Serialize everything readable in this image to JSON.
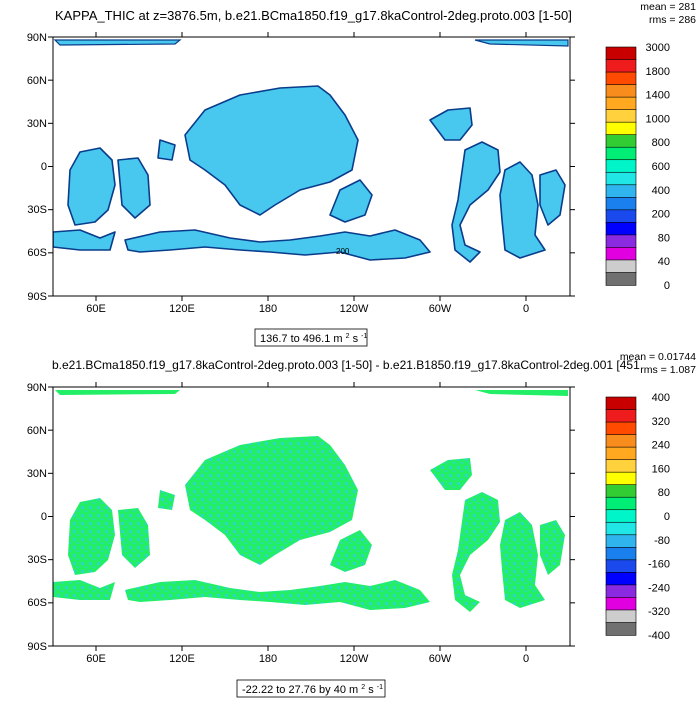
{
  "chart_data": [
    {
      "type": "heatmap",
      "title": "KAPPA_THIC at z=3876.5m, b.e21.BCma1850.f19_g17.8kaControl-2deg.proto.003 [1-50]",
      "stats": [
        "mean = 281",
        "rms = 286"
      ],
      "range_text": "136.7 to 496.1 m",
      "range_unit_sup": "2",
      "range_unit_tail": " s",
      "range_unit_sup2": "-1",
      "x_ticks": [
        "60E",
        "120E",
        "180",
        "120W",
        "60W",
        "0"
      ],
      "y_ticks": [
        "90N",
        "60N",
        "30N",
        "0",
        "30S",
        "60S",
        "90S"
      ],
      "contour_label": "200",
      "ocean_fill": "#48c8ee",
      "colorbar": {
        "labels": [
          "3000",
          "1800",
          "1400",
          "1000",
          "800",
          "600",
          "400",
          "200",
          "80",
          "40",
          "0"
        ],
        "colors": [
          "#c80000",
          "#ee1c1c",
          "#ff4a00",
          "#f88c1c",
          "#ffa820",
          "#ffd13c",
          "#ffff00",
          "#32cd32",
          "#00ee76",
          "#00f5c8",
          "#20e6e6",
          "#2fb4ee",
          "#1a80ee",
          "#1a4aee",
          "#0000ff",
          "#8a2be2",
          "#e000e0",
          "#cdcdcd",
          "#707070"
        ]
      }
    },
    {
      "type": "heatmap",
      "title": "b.e21.BCma1850.f19_g17.8kaControl-2deg.proto.003 [1-50] - b.e21.B1850.f19_g17.8kaControl-2deg.001 [451",
      "stats": [
        "mean = 0.01744",
        "rms = 1.087"
      ],
      "range_text": "-22.22 to 27.76 by 40 m",
      "range_unit_sup": "2",
      "range_unit_tail": " s",
      "range_unit_sup2": "-1",
      "x_ticks": [
        "60E",
        "120E",
        "180",
        "120W",
        "60W",
        "0"
      ],
      "y_ticks": [
        "90N",
        "60N",
        "30N",
        "0",
        "30S",
        "60S",
        "90S"
      ],
      "ocean_fill": "#22ee66",
      "ocean_secondary": "#2ed8c0",
      "colorbar": {
        "labels": [
          "400",
          "320",
          "240",
          "160",
          "80",
          "0",
          "-80",
          "-160",
          "-240",
          "-320",
          "-400"
        ],
        "colors": [
          "#c80000",
          "#ee1c1c",
          "#ff4a00",
          "#f88c1c",
          "#ffa820",
          "#ffd13c",
          "#ffff00",
          "#32cd32",
          "#00ee76",
          "#00f5c8",
          "#20e6e6",
          "#2fb4ee",
          "#1a80ee",
          "#1a4aee",
          "#0000ff",
          "#8a2be2",
          "#e000e0",
          "#cdcdcd",
          "#707070"
        ]
      }
    }
  ]
}
